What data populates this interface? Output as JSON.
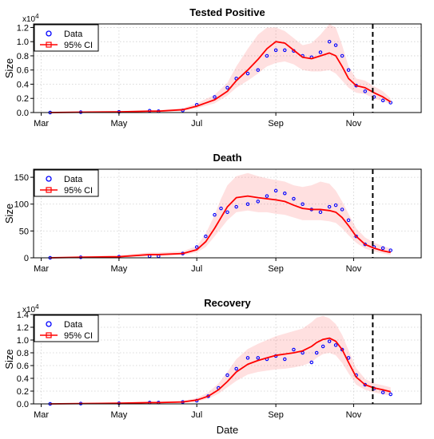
{
  "chart_data": [
    {
      "type": "line",
      "title": "Tested Positive",
      "ylabel": "Size",
      "xlabel": "",
      "multiplier": "x10",
      "multiplier_exp": "4",
      "ylim": [
        0,
        12500
      ],
      "yticks": [
        0,
        2000,
        4000,
        6000,
        8000,
        10000,
        12000
      ],
      "ytick_labels": [
        "0.0",
        "0.2",
        "0.4",
        "0.6",
        "0.8",
        "1.0",
        "1.2"
      ],
      "xticks": [
        "Mar",
        "May",
        "Jul",
        "Sep",
        "Nov"
      ],
      "xtick_dates": [
        "2020-03-01",
        "2020-05-01",
        "2020-07-01",
        "2020-09-01",
        "2020-11-01"
      ],
      "xlim": [
        "2020-02-24",
        "2020-12-24"
      ],
      "vline_date": "2020-11-16",
      "grid": true,
      "legend": {
        "position": "top-left",
        "entries": [
          "Data",
          "95% CI"
        ]
      },
      "series": [
        {
          "name": "Data",
          "style": "points",
          "color": "#0000ff",
          "x": [
            "2020-03-08",
            "2020-04-01",
            "2020-05-01",
            "2020-05-25",
            "2020-06-01",
            "2020-06-20",
            "2020-07-01",
            "2020-07-15",
            "2020-07-25",
            "2020-08-01",
            "2020-08-10",
            "2020-08-18",
            "2020-08-25",
            "2020-09-01",
            "2020-09-08",
            "2020-09-15",
            "2020-09-22",
            "2020-09-29",
            "2020-10-06",
            "2020-10-13",
            "2020-10-18",
            "2020-10-23",
            "2020-10-28",
            "2020-11-03",
            "2020-11-10",
            "2020-11-17",
            "2020-11-24",
            "2020-11-30"
          ],
          "y": [
            0,
            50,
            100,
            250,
            180,
            300,
            1100,
            2200,
            3500,
            4800,
            5500,
            6000,
            8000,
            8800,
            8800,
            8700,
            8000,
            7800,
            8500,
            10000,
            9500,
            8000,
            6000,
            3800,
            3000,
            2200,
            1700,
            1400
          ]
        },
        {
          "name": "95% CI",
          "style": "line",
          "color": "#ff0000",
          "x": [
            "2020-03-08",
            "2020-04-01",
            "2020-05-01",
            "2020-05-25",
            "2020-06-01",
            "2020-06-20",
            "2020-07-01",
            "2020-07-15",
            "2020-07-25",
            "2020-08-01",
            "2020-08-10",
            "2020-08-18",
            "2020-08-25",
            "2020-09-01",
            "2020-09-08",
            "2020-09-15",
            "2020-09-22",
            "2020-09-29",
            "2020-10-06",
            "2020-10-13",
            "2020-10-18",
            "2020-10-23",
            "2020-10-28",
            "2020-11-03",
            "2020-11-10",
            "2020-11-17",
            "2020-11-24",
            "2020-11-30"
          ],
          "y": [
            0,
            50,
            100,
            200,
            200,
            400,
            900,
            1800,
            3000,
            4500,
            6000,
            7500,
            9000,
            10000,
            9800,
            8800,
            7800,
            7600,
            8000,
            8400,
            8000,
            6500,
            4800,
            3800,
            3500,
            2800,
            2200,
            1500
          ],
          "lower": [
            0,
            0,
            0,
            100,
            100,
            200,
            600,
            1300,
            2400,
            3500,
            4500,
            5500,
            6500,
            7000,
            7200,
            6800,
            6000,
            5800,
            5800,
            6000,
            5500,
            4500,
            3500,
            2800,
            2600,
            2000,
            1600,
            1200
          ],
          "upper": [
            50,
            100,
            200,
            350,
            350,
            600,
            1300,
            2500,
            4200,
            6500,
            9000,
            11000,
            12000,
            12000,
            11500,
            10500,
            9500,
            9800,
            11000,
            12500,
            12000,
            9500,
            6500,
            4800,
            4500,
            3700,
            3000,
            2000
          ]
        }
      ]
    },
    {
      "type": "line",
      "title": "Death",
      "ylabel": "Size",
      "xlabel": "",
      "multiplier": "",
      "multiplier_exp": "",
      "ylim": [
        0,
        165
      ],
      "yticks": [
        0,
        50,
        100,
        150
      ],
      "ytick_labels": [
        "0",
        "50",
        "100",
        "150"
      ],
      "xticks": [
        "Mar",
        "May",
        "Jul",
        "Sep",
        "Nov"
      ],
      "xtick_dates": [
        "2020-03-01",
        "2020-05-01",
        "2020-07-01",
        "2020-09-01",
        "2020-11-01"
      ],
      "xlim": [
        "2020-02-24",
        "2020-12-24"
      ],
      "vline_date": "2020-11-16",
      "grid": true,
      "legend": {
        "position": "top-left",
        "entries": [
          "Data",
          "95% CI"
        ]
      },
      "series": [
        {
          "name": "Data",
          "style": "points",
          "color": "#0000ff",
          "x": [
            "2020-03-08",
            "2020-04-01",
            "2020-05-01",
            "2020-05-25",
            "2020-06-01",
            "2020-06-20",
            "2020-07-01",
            "2020-07-08",
            "2020-07-15",
            "2020-07-20",
            "2020-07-25",
            "2020-08-01",
            "2020-08-10",
            "2020-08-18",
            "2020-08-25",
            "2020-09-01",
            "2020-09-08",
            "2020-09-15",
            "2020-09-22",
            "2020-09-29",
            "2020-10-06",
            "2020-10-13",
            "2020-10-18",
            "2020-10-23",
            "2020-10-28",
            "2020-11-03",
            "2020-11-10",
            "2020-11-17",
            "2020-11-24",
            "2020-11-30"
          ],
          "y": [
            0,
            1,
            2,
            3,
            3,
            8,
            20,
            40,
            80,
            92,
            85,
            95,
            100,
            105,
            115,
            125,
            120,
            110,
            100,
            90,
            85,
            95,
            98,
            90,
            70,
            40,
            25,
            20,
            18,
            14
          ]
        },
        {
          "name": "95% CI",
          "style": "line",
          "color": "#ff0000",
          "x": [
            "2020-03-08",
            "2020-04-01",
            "2020-05-01",
            "2020-05-25",
            "2020-06-01",
            "2020-06-20",
            "2020-07-01",
            "2020-07-08",
            "2020-07-15",
            "2020-07-20",
            "2020-07-25",
            "2020-08-01",
            "2020-08-10",
            "2020-08-18",
            "2020-08-25",
            "2020-09-01",
            "2020-09-08",
            "2020-09-15",
            "2020-09-22",
            "2020-09-29",
            "2020-10-06",
            "2020-10-13",
            "2020-10-18",
            "2020-10-23",
            "2020-10-28",
            "2020-11-03",
            "2020-11-10",
            "2020-11-17",
            "2020-11-24",
            "2020-11-30"
          ],
          "y": [
            0,
            1,
            2,
            6,
            6,
            8,
            15,
            30,
            55,
            75,
            95,
            112,
            115,
            112,
            110,
            108,
            105,
            98,
            92,
            90,
            90,
            88,
            85,
            75,
            60,
            40,
            25,
            18,
            13,
            10
          ],
          "lower": [
            0,
            0,
            1,
            3,
            3,
            5,
            10,
            20,
            40,
            55,
            70,
            85,
            88,
            85,
            85,
            82,
            80,
            75,
            70,
            70,
            70,
            68,
            65,
            55,
            42,
            28,
            17,
            12,
            8,
            5
          ],
          "upper": [
            2,
            3,
            5,
            10,
            10,
            12,
            22,
            45,
            80,
            110,
            135,
            152,
            158,
            152,
            148,
            145,
            142,
            135,
            132,
            135,
            142,
            138,
            125,
            105,
            82,
            55,
            38,
            28,
            22,
            17
          ]
        }
      ]
    },
    {
      "type": "line",
      "title": "Recovery",
      "ylabel": "Size",
      "xlabel": "Date",
      "multiplier": "x10",
      "multiplier_exp": "4",
      "ylim": [
        0,
        14000
      ],
      "yticks": [
        0,
        2000,
        4000,
        6000,
        8000,
        10000,
        12000,
        14000
      ],
      "ytick_labels": [
        "0.0",
        "0.2",
        "0.4",
        "0.6",
        "0.8",
        "1.0",
        "1.2",
        "1.4"
      ],
      "xticks": [
        "Mar",
        "May",
        "Jul",
        "Sep",
        "Nov"
      ],
      "xtick_dates": [
        "2020-03-01",
        "2020-05-01",
        "2020-07-01",
        "2020-09-01",
        "2020-11-01"
      ],
      "xlim": [
        "2020-02-24",
        "2020-12-24"
      ],
      "vline_date": "2020-11-16",
      "grid": true,
      "legend": {
        "position": "top-left",
        "entries": [
          "Data",
          "95% CI"
        ]
      },
      "series": [
        {
          "name": "Data",
          "style": "points",
          "color": "#0000ff",
          "x": [
            "2020-03-08",
            "2020-04-01",
            "2020-05-01",
            "2020-05-25",
            "2020-06-01",
            "2020-06-20",
            "2020-07-01",
            "2020-07-10",
            "2020-07-18",
            "2020-07-25",
            "2020-08-01",
            "2020-08-10",
            "2020-08-18",
            "2020-08-25",
            "2020-09-01",
            "2020-09-08",
            "2020-09-15",
            "2020-09-22",
            "2020-09-29",
            "2020-10-03",
            "2020-10-08",
            "2020-10-13",
            "2020-10-18",
            "2020-10-23",
            "2020-10-28",
            "2020-11-03",
            "2020-11-10",
            "2020-11-17",
            "2020-11-24",
            "2020-11-30"
          ],
          "y": [
            0,
            50,
            100,
            200,
            200,
            300,
            500,
            1200,
            2500,
            4500,
            5500,
            7200,
            7200,
            7000,
            7500,
            7000,
            8500,
            8000,
            6500,
            8000,
            9000,
            9800,
            9200,
            8500,
            7200,
            4500,
            3000,
            2400,
            1800,
            1500
          ]
        },
        {
          "name": "95% CI",
          "style": "line",
          "color": "#ff0000",
          "x": [
            "2020-03-08",
            "2020-04-01",
            "2020-05-01",
            "2020-05-25",
            "2020-06-01",
            "2020-06-20",
            "2020-07-01",
            "2020-07-10",
            "2020-07-18",
            "2020-07-25",
            "2020-08-01",
            "2020-08-10",
            "2020-08-18",
            "2020-08-25",
            "2020-09-01",
            "2020-09-08",
            "2020-09-15",
            "2020-09-22",
            "2020-09-29",
            "2020-10-03",
            "2020-10-08",
            "2020-10-13",
            "2020-10-18",
            "2020-10-23",
            "2020-10-28",
            "2020-11-03",
            "2020-11-10",
            "2020-11-17",
            "2020-11-24",
            "2020-11-30"
          ],
          "y": [
            0,
            50,
            100,
            200,
            200,
            300,
            600,
            1200,
            2200,
            3500,
            5000,
            6200,
            6800,
            7200,
            7600,
            7800,
            8000,
            8300,
            9000,
            9600,
            10100,
            10300,
            9800,
            8500,
            6500,
            4200,
            3000,
            2500,
            2200,
            1900
          ],
          "lower": [
            0,
            0,
            50,
            100,
            100,
            200,
            400,
            800,
            1600,
            2600,
            3600,
            4600,
            5000,
            5200,
            5400,
            5500,
            5700,
            6000,
            6500,
            7200,
            7800,
            8000,
            7600,
            6400,
            4800,
            3000,
            2200,
            1800,
            1500,
            1300
          ],
          "upper": [
            100,
            150,
            200,
            350,
            350,
            500,
            900,
            1800,
            3200,
            5000,
            7000,
            8600,
            9400,
            10000,
            10600,
            11000,
            11400,
            11800,
            12800,
            13500,
            13800,
            13400,
            12500,
            10800,
            8400,
            5600,
            3900,
            3200,
            2900,
            2600
          ]
        }
      ]
    }
  ]
}
